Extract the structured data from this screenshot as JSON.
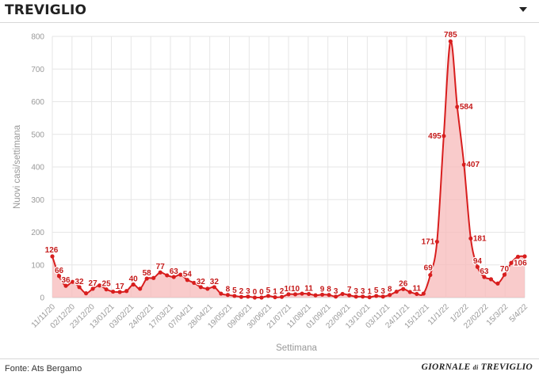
{
  "header": {
    "title": "TREVIGLIO",
    "dropdown_icon": "caret-down-icon"
  },
  "footer": {
    "source": "Fonte: Ats Bergamo",
    "logo_text": "GIORNALE di TREVIGLIO"
  },
  "colors": {
    "line": "#d81e1e",
    "area": "#f7b9b9",
    "label": "#c41a1a",
    "axis_text": "#999999",
    "grid": "#e6e6e6"
  },
  "chart_data": {
    "type": "area",
    "xlabel": "Settimana",
    "ylabel": "Nuovi casi/settimana",
    "ylim": [
      0,
      800
    ],
    "yticks": [
      0,
      100,
      200,
      300,
      400,
      500,
      600,
      700,
      800
    ],
    "grid": true,
    "x_tick_labels": [
      "11/11/20",
      "02/12/20",
      "23/12/20",
      "13/01/21",
      "03/02/21",
      "24/02/21",
      "17/03/21",
      "07/04/21",
      "28/04/21",
      "19/05/21",
      "09/06/21",
      "30/06/21",
      "21/07/21",
      "11/08/21",
      "01/09/21",
      "22/09/21",
      "13/10/21",
      "03/11/21",
      "24/11/21",
      "15/12/21",
      "11/1/22",
      "1/2/22",
      "22/02/22",
      "15/3/22",
      "5/4/22"
    ],
    "series": [
      {
        "values": [
          126,
          66,
          36,
          48,
          32,
          13,
          27,
          37,
          25,
          18,
          17,
          20,
          40,
          27,
          58,
          60,
          77,
          68,
          63,
          70,
          54,
          45,
          32,
          27,
          32,
          12,
          8,
          5,
          2,
          3,
          0,
          0,
          5,
          1,
          2,
          10,
          10,
          12,
          11,
          7,
          9,
          8,
          3,
          11,
          7,
          3,
          3,
          1,
          5,
          3,
          8,
          18,
          26,
          17,
          11,
          12,
          69,
          171,
          495,
          785,
          584,
          407,
          181,
          94,
          63,
          56,
          43,
          70,
          106,
          125,
          126
        ]
      }
    ]
  }
}
